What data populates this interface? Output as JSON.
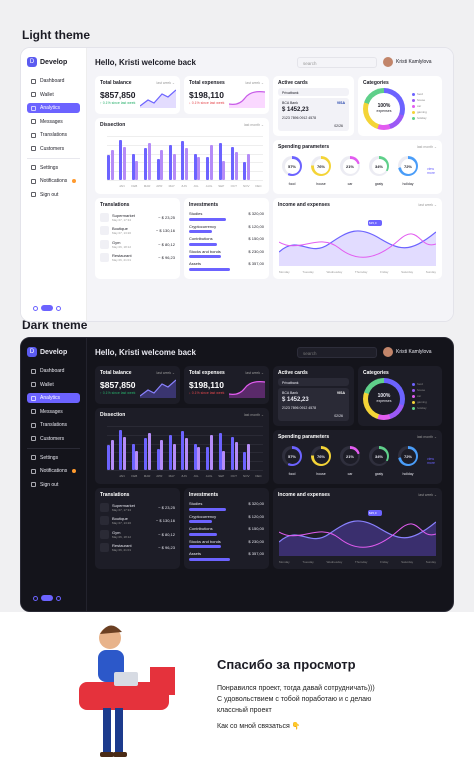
{
  "sections": {
    "light_title": "Light theme",
    "dark_title": "Dark theme"
  },
  "app": {
    "logo_letter": "D",
    "logo": "Develop",
    "nav": [
      "Dashboard",
      "Wallet",
      "Analytics",
      "Messages",
      "Translations",
      "Customers"
    ],
    "nav2": [
      "Settings",
      "Notifications",
      "Sign out"
    ],
    "greeting": "Hello, Kristi welcome back",
    "search_placeholder": "search",
    "user": "Kristi Kamlylova",
    "total_balance": {
      "title": "Total balance",
      "value": "$857,850",
      "change": "↑ 0.1% since last week",
      "period": "last week ⌄"
    },
    "total_expenses": {
      "title": "Total expenses",
      "value": "$198,110",
      "change": "↓ 0.1% since last week",
      "period": "last week ⌄"
    },
    "active_cards": {
      "title": "Active cards",
      "card1": "Privatbank",
      "card2": "BCA Bank",
      "amount": "$ 1452,23",
      "number": "2123 7896 0912 4578",
      "exp": "02/26",
      "card_label": "Card holder",
      "valid_label": "Valid"
    },
    "categories": {
      "title": "Categories",
      "pct": "100%",
      "label": "expenses",
      "legend": [
        "food",
        "house",
        "car",
        "gaming",
        "holiday"
      ]
    },
    "dissection": {
      "title": "Dissection",
      "period": "last month ⌄",
      "legend": [
        "Income",
        "Expenses"
      ],
      "months": [
        "JAN",
        "FEB",
        "MAR",
        "APR",
        "MAY",
        "JUN",
        "JUL",
        "AUG",
        "SEP",
        "OCT",
        "NOV",
        "DEC"
      ],
      "yticks": [
        "$50K",
        "$40K",
        "$30K",
        "$20K",
        "$10K",
        "0"
      ]
    },
    "spending": {
      "title": "Spending parameters",
      "period": "last month ⌄",
      "items": [
        {
          "pct": "57%",
          "label": "food"
        },
        {
          "pct": "76%",
          "label": "house"
        },
        {
          "pct": "21%",
          "label": "car"
        },
        {
          "pct": "34%",
          "label": "gasty"
        },
        {
          "pct": "72%",
          "label": "holiday"
        }
      ],
      "more": "view more"
    },
    "translations": {
      "title": "Translations",
      "rows": [
        {
          "name": "Supermarket",
          "date": "May 07, 17:34",
          "amt": "− $ 23,25"
        },
        {
          "name": "Boutique",
          "date": "May 07, 13:20",
          "amt": "− $ 130,16"
        },
        {
          "name": "Gym",
          "date": "May 06, 18:12",
          "amt": "− $ 80,12"
        },
        {
          "name": "Restaurant",
          "date": "May 06, 21:01",
          "amt": "− $ 96,23"
        }
      ]
    },
    "investments": {
      "title": "Investments",
      "rows": [
        {
          "name": "Studies",
          "val": "$ 320,00"
        },
        {
          "name": "Cryptocurrency",
          "val": "$ 120,00"
        },
        {
          "name": "Contributions",
          "val": "$ 150,00"
        },
        {
          "name": "Stocks and bonds",
          "val": "$ 230,00"
        },
        {
          "name": "Assets",
          "val": "$ 357,00"
        }
      ]
    },
    "income_expenses": {
      "title": "Income and expenses",
      "period": "last week ⌄",
      "legend": [
        "Income",
        "Expenses"
      ],
      "days": [
        "Monday",
        "Tuesday",
        "Wednesday",
        "Thursday",
        "Friday",
        "Saturday",
        "Sunday"
      ],
      "tooltip": "$35,0"
    }
  },
  "colors": {
    "accent": "#6c63ff",
    "purple": "#9b59f5",
    "pink": "#e25cf0",
    "yellow": "#f4d437",
    "green": "#5fd08a",
    "blue": "#4a9df8"
  },
  "footer": {
    "title": "Спасибо за просмотр",
    "line1": "Понравился проект, тогда давай сотрудничать)))",
    "line2": "С удовольствием с тобой поработаю и с делаю",
    "line3": "классный проект",
    "line4": "Как со мной связаться 👇"
  }
}
